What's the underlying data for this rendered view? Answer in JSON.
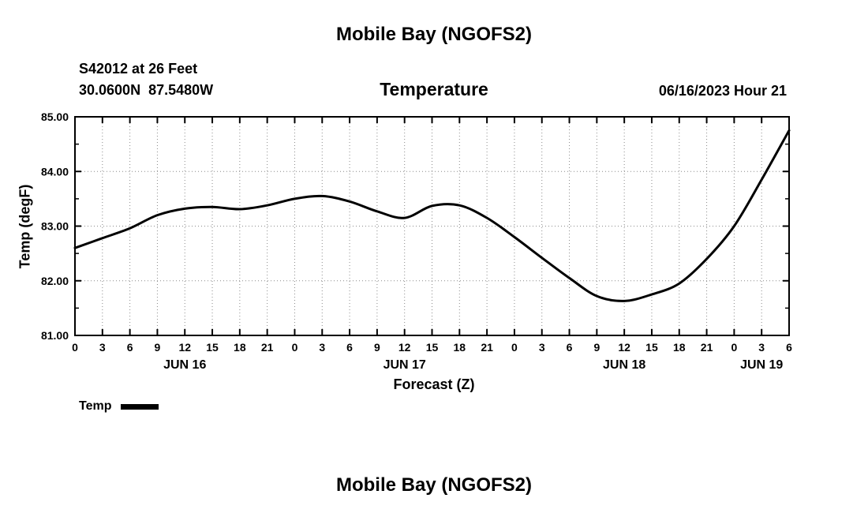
{
  "page": {
    "top_title": "Mobile Bay (NGOFS2)",
    "bottom_title": "Mobile Bay (NGOFS2)"
  },
  "header": {
    "station_line1": "S42012 at 26 Feet",
    "station_line2": "30.0600N  87.5480W",
    "subtitle": "Temperature",
    "datetime": "06/16/2023 Hour 21"
  },
  "chart_data": {
    "type": "line",
    "title": "Mobile Bay (NGOFS2)",
    "subtitle": "Temperature",
    "xlabel": "Forecast (Z)",
    "ylabel": "Temp (degF)",
    "ylim": [
      81,
      85
    ],
    "xlim_hours": [
      0,
      78
    ],
    "grid": true,
    "line_color": "#000000",
    "grid_color": "#8a8a8a",
    "legend": {
      "label": "Temp",
      "position": "bottom-left"
    },
    "y_ticks": [
      {
        "value": 81,
        "label": "81.00"
      },
      {
        "value": 82,
        "label": "82.00"
      },
      {
        "value": 83,
        "label": "83.00"
      },
      {
        "value": 84,
        "label": "84.00"
      },
      {
        "value": 85,
        "label": "85.00"
      }
    ],
    "x_ticks": [
      {
        "hour": 0,
        "label": "0"
      },
      {
        "hour": 3,
        "label": "3"
      },
      {
        "hour": 6,
        "label": "6"
      },
      {
        "hour": 9,
        "label": "9"
      },
      {
        "hour": 12,
        "label": "12"
      },
      {
        "hour": 15,
        "label": "15"
      },
      {
        "hour": 18,
        "label": "18"
      },
      {
        "hour": 21,
        "label": "21"
      },
      {
        "hour": 24,
        "label": "0"
      },
      {
        "hour": 27,
        "label": "3"
      },
      {
        "hour": 30,
        "label": "6"
      },
      {
        "hour": 33,
        "label": "9"
      },
      {
        "hour": 36,
        "label": "12"
      },
      {
        "hour": 39,
        "label": "15"
      },
      {
        "hour": 42,
        "label": "18"
      },
      {
        "hour": 45,
        "label": "21"
      },
      {
        "hour": 48,
        "label": "0"
      },
      {
        "hour": 51,
        "label": "3"
      },
      {
        "hour": 54,
        "label": "6"
      },
      {
        "hour": 57,
        "label": "9"
      },
      {
        "hour": 60,
        "label": "12"
      },
      {
        "hour": 63,
        "label": "15"
      },
      {
        "hour": 66,
        "label": "18"
      },
      {
        "hour": 69,
        "label": "21"
      },
      {
        "hour": 72,
        "label": "0"
      },
      {
        "hour": 75,
        "label": "3"
      },
      {
        "hour": 78,
        "label": "6"
      }
    ],
    "day_labels": [
      {
        "hour": 12,
        "label": "JUN 16"
      },
      {
        "hour": 36,
        "label": "JUN 17"
      },
      {
        "hour": 60,
        "label": "JUN 18"
      },
      {
        "hour": 75,
        "label": "JUN 19"
      }
    ],
    "series": [
      {
        "name": "Temp",
        "x_hours": [
          0,
          3,
          6,
          9,
          12,
          15,
          18,
          21,
          24,
          27,
          30,
          33,
          36,
          39,
          42,
          45,
          48,
          51,
          54,
          57,
          60,
          63,
          66,
          69,
          72,
          75,
          78
        ],
        "values": [
          82.6,
          82.78,
          82.96,
          83.2,
          83.32,
          83.35,
          83.31,
          83.38,
          83.5,
          83.55,
          83.45,
          83.27,
          83.15,
          83.37,
          83.38,
          83.15,
          82.8,
          82.42,
          82.05,
          81.72,
          81.63,
          81.75,
          81.95,
          82.4,
          83.0,
          83.85,
          84.75
        ]
      }
    ]
  }
}
